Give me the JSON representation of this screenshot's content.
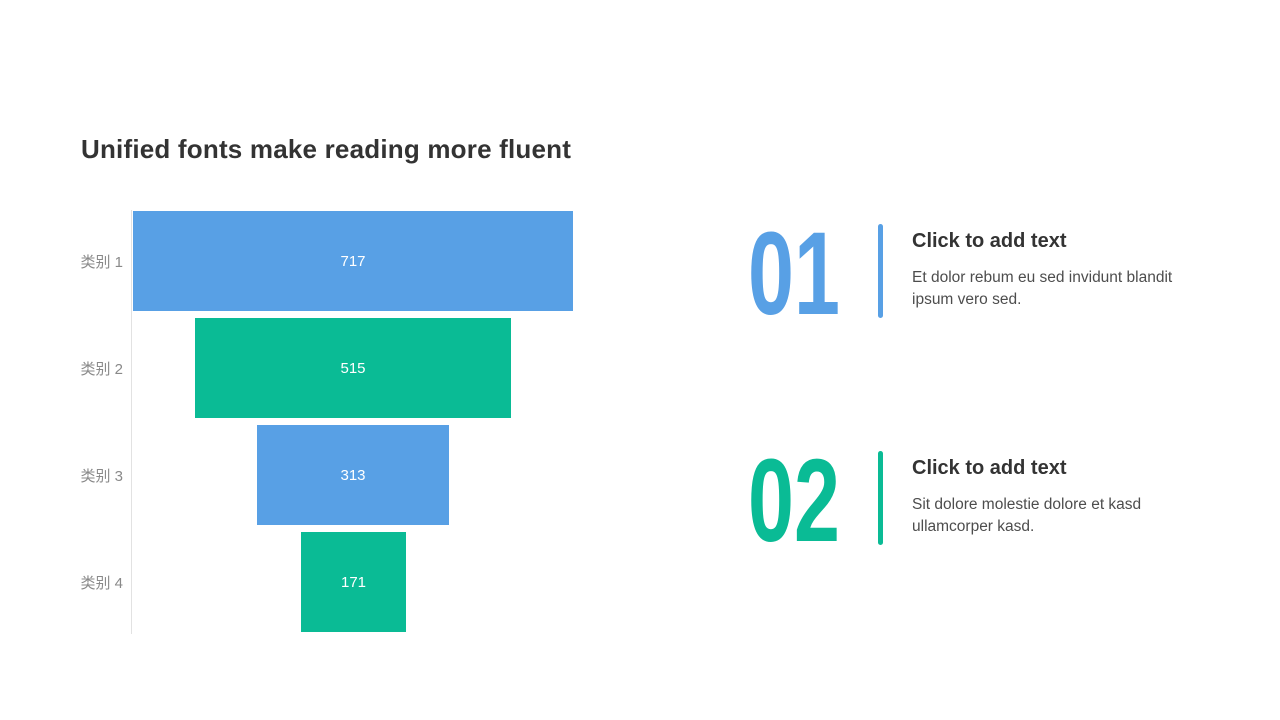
{
  "slide": {
    "title": "Unified fonts make reading more fluent"
  },
  "colors": {
    "accent_blue": "#58a0e5",
    "accent_green": "#0abb95",
    "title_text": "#333333",
    "category_label": "#898989",
    "bar_value_text": "#ffffff",
    "axis_line": "#e2e2e2",
    "body_text": "#4d4d4d"
  },
  "chart_data": {
    "type": "bar",
    "layout": "horizontal bars centered on vertical midline (funnel style), no x-axis, no gridlines, value labels inside bars",
    "categories": [
      "类别 1",
      "类别 2",
      "类别 3",
      "类别 4"
    ],
    "values": [
      717,
      515,
      313,
      171
    ],
    "bar_colors": [
      "#58a0e5",
      "#0abb95",
      "#58a0e5",
      "#0abb95"
    ],
    "max_value": 717,
    "value_label_position": "inside-center",
    "category_label_position": "left",
    "title": "",
    "xlabel": "",
    "ylabel": ""
  },
  "items": [
    {
      "number": "01",
      "accent": "#58a0e5",
      "heading": "Click to add text",
      "body": "Et dolor rebum eu sed invidunt blandit ipsum vero sed."
    },
    {
      "number": "02",
      "accent": "#0abb95",
      "heading": "Click to add text",
      "body": "Sit dolore molestie dolore et kasd ullamcorper kasd."
    }
  ]
}
